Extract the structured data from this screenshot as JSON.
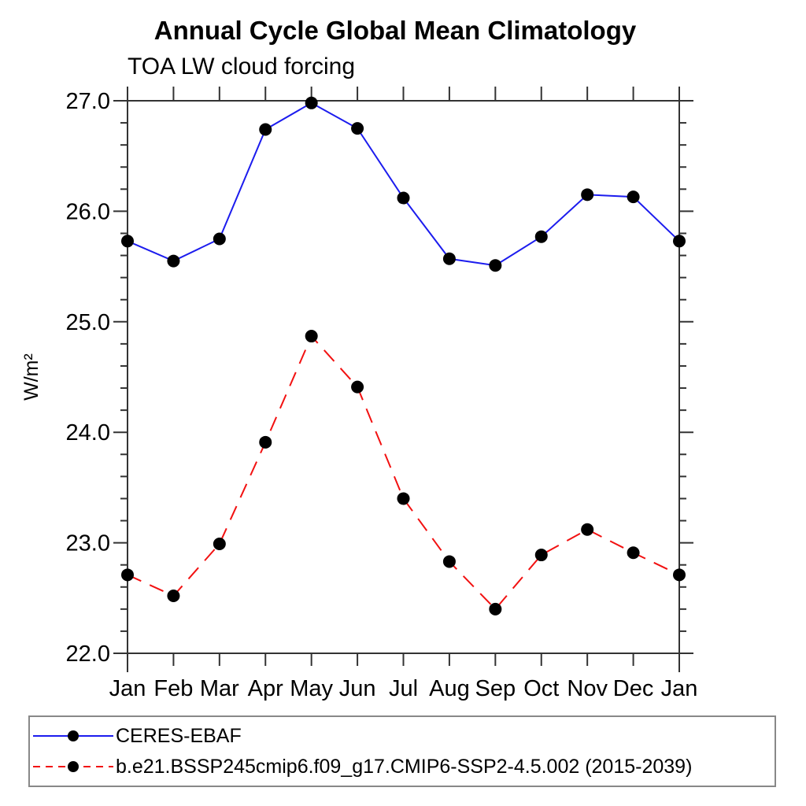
{
  "chart_data": {
    "type": "line",
    "title": "Annual Cycle Global Mean Climatology",
    "subtitle": "TOA LW cloud forcing",
    "ylabel": "W/m²",
    "xlabel": "",
    "x_categories": [
      "Jan",
      "Feb",
      "Mar",
      "Apr",
      "May",
      "Jun",
      "Jul",
      "Aug",
      "Sep",
      "Oct",
      "Nov",
      "Dec",
      "Jan"
    ],
    "ylim": [
      22.0,
      27.0
    ],
    "ytick_major_interval": 1.0,
    "ytick_minor_interval": 0.2,
    "ytick_labels": [
      "27.0",
      "26.0",
      "25.0",
      "24.0",
      "23.0",
      "22.0"
    ],
    "grid": false,
    "legend_position": "bottom",
    "marker": "filled-circle",
    "marker_color": "#000000",
    "series": [
      {
        "name": "CERES-EBAF",
        "color": "#1c1cee",
        "line_style": "solid",
        "values": [
          25.73,
          25.55,
          25.75,
          26.74,
          26.98,
          26.75,
          26.12,
          25.57,
          25.51,
          25.77,
          26.15,
          26.13,
          25.73
        ]
      },
      {
        "name": "b.e21.BSSP245cmip6.f09_g17.CMIP6-SSP2-4.5.002 (2015-2039)",
        "color": "#f21111",
        "line_style": "dashed",
        "values": [
          22.71,
          22.52,
          22.99,
          23.91,
          24.87,
          24.41,
          23.4,
          22.83,
          22.4,
          22.89,
          23.12,
          22.91,
          22.71
        ]
      }
    ]
  }
}
